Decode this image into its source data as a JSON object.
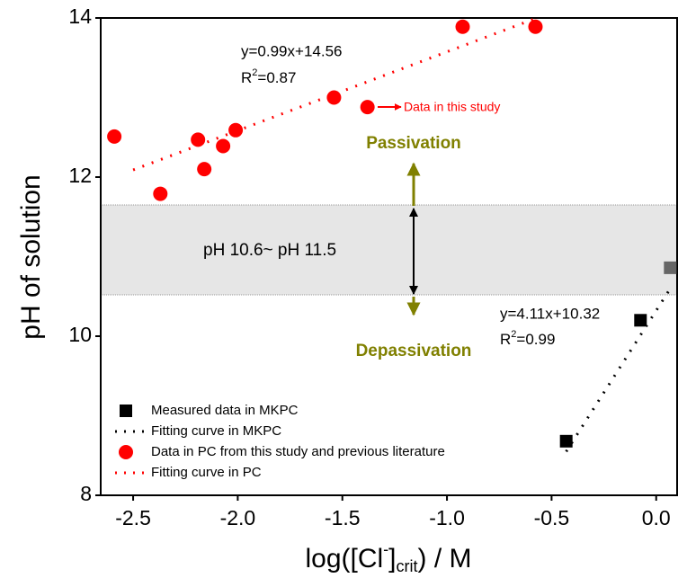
{
  "chart_data": {
    "type": "scatter",
    "xlabel": [
      "log([Cl",
      "-",
      "]",
      "crit",
      ") / M"
    ],
    "ylabel": "pH of solution",
    "xlim": [
      -2.655,
      0.1
    ],
    "ylim": [
      8,
      14
    ],
    "xticks": [
      -2.5,
      {
        "value": -2,
        "label": "-2.0"
      },
      -1.5,
      {
        "value": -1,
        "label": "-1.0"
      },
      -0.5,
      {
        "value": 0,
        "label": "0.0"
      }
    ],
    "yticks": [
      8,
      10,
      12,
      14
    ],
    "series": [
      {
        "name": "Measured data in MKPC",
        "marker": "square",
        "color": "#000000",
        "colors": [
          "#000000",
          "#000000",
          "#666666"
        ],
        "x": [
          -0.43,
          -0.075,
          0.067
        ],
        "values": [
          8.68,
          10.2,
          10.86
        ]
      },
      {
        "name": "Fitting curve in MKPC",
        "marker": "line",
        "color": "#000000",
        "x": [
          -0.43,
          0.07
        ],
        "values": [
          8.55,
          10.61
        ]
      },
      {
        "name": "Data in PC from this study and previous literature",
        "marker": "circle",
        "color": "#ff0000",
        "x": [
          -2.59,
          -2.37,
          -2.19,
          -2.16,
          -2.07,
          -2.01,
          -1.54,
          -1.38,
          -0.925,
          -0.577
        ],
        "values": [
          12.51,
          11.79,
          12.47,
          12.1,
          12.39,
          12.59,
          13.0,
          12.88,
          13.89,
          13.89
        ]
      },
      {
        "name": "Fitting curve in PC",
        "marker": "line",
        "color": "#ff0000",
        "x": [
          -2.5,
          -0.57
        ],
        "values": [
          12.09,
          14.0
        ]
      }
    ],
    "band": {
      "ylim": [
        10.52,
        11.65
      ],
      "color": "#e6e6e6",
      "label": "pH 10.6~ pH 11.5"
    },
    "annotations": {
      "pc_equation": "y=0.99x+14.56",
      "pc_r2": [
        "R",
        "2",
        "=0.87"
      ],
      "mkpc_equation": "y=4.11x+10.32",
      "mkpc_r2": [
        "R",
        "2",
        "=0.99"
      ],
      "this_study": "Data in this study",
      "passivation": "Passivation",
      "depassivation": "Depassivation"
    }
  }
}
